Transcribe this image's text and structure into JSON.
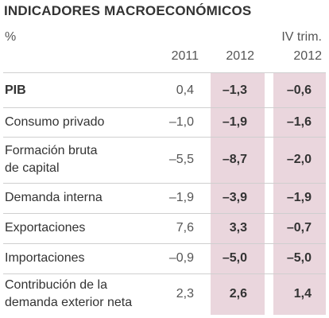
{
  "chart_data": {
    "type": "table",
    "title": "INDICADORES MACROECONÓMICOS",
    "unit": "%",
    "columns": [
      {
        "label_top": "",
        "label": "2011"
      },
      {
        "label_top": "",
        "label": "2012"
      },
      {
        "label_top": "IV trim.",
        "label": "2012"
      }
    ],
    "rows": [
      {
        "label": [
          "PIB"
        ],
        "bold": true,
        "values": [
          "0,4",
          "–1,3",
          "–0,6"
        ]
      },
      {
        "label": [
          "Consumo privado"
        ],
        "bold": false,
        "values": [
          "–1,0",
          "–1,9",
          "–1,6"
        ]
      },
      {
        "label": [
          "Formación bruta",
          "de capital"
        ],
        "bold": false,
        "values": [
          "–5,5",
          "–8,7",
          "–2,0"
        ]
      },
      {
        "label": [
          "Demanda interna"
        ],
        "bold": false,
        "values": [
          "–1,9",
          "–3,9",
          "–1,9"
        ]
      },
      {
        "label": [
          "Exportaciones"
        ],
        "bold": false,
        "values": [
          "7,6",
          "3,3",
          "–0,7"
        ]
      },
      {
        "label": [
          "Importaciones"
        ],
        "bold": false,
        "values": [
          "–0,9",
          "–5,0",
          "–5,0"
        ]
      },
      {
        "label": [
          "Contribución de la",
          "demanda exterior neta"
        ],
        "bold": false,
        "values": [
          "2,3",
          "2,6",
          "1,4"
        ]
      }
    ],
    "highlight_color": "#ead6dd"
  }
}
